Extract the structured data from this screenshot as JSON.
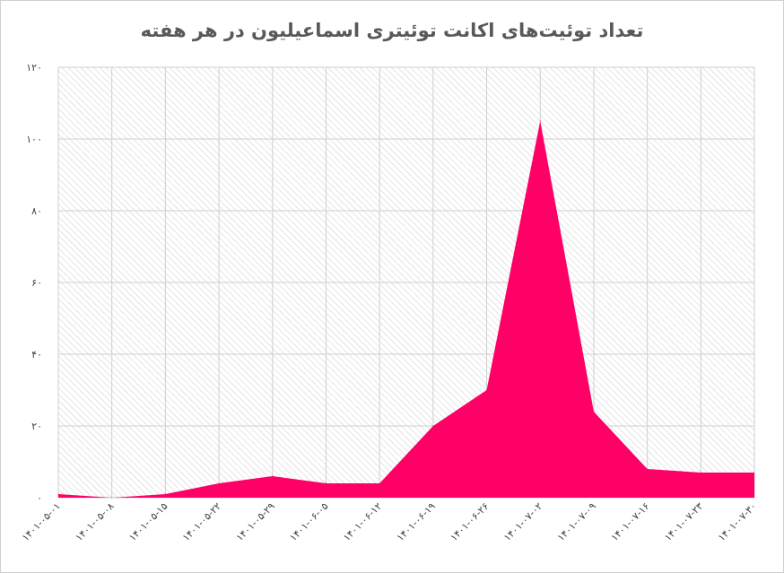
{
  "chart_data": {
    "type": "area",
    "title": "تعداد توئیت‌های اکانت توئیتری اسماعیلیون در هر هفته",
    "xlabel": "",
    "ylabel": "",
    "ylim": [
      0,
      120
    ],
    "y_ticks": [
      "۰",
      "۲۰",
      "۴۰",
      "۶۰",
      "۸۰",
      "۱۰۰",
      "۱۲۰"
    ],
    "categories": [
      "۱۴۰۱-۰۵-۰۱",
      "۱۴۰۱-۰۵-۰۸",
      "۱۴۰۱-۰۵-۱۵",
      "۱۴۰۱-۰۵-۲۲",
      "۱۴۰۱-۰۵-۲۹",
      "۱۴۰۱-۰۶-۰۵",
      "۱۴۰۱-۰۶-۱۲",
      "۱۴۰۱-۰۶-۱۹",
      "۱۴۰۱-۰۶-۲۶",
      "۱۴۰۱-۰۷-۰۲",
      "۱۴۰۱-۰۷-۰۹",
      "۱۴۰۱-۰۷-۱۶",
      "۱۴۰۱-۰۷-۲۳",
      "۱۴۰۱-۰۷-۳۰"
    ],
    "values": [
      1,
      0,
      1,
      4,
      6,
      4,
      4,
      20,
      30,
      105,
      24,
      8,
      7,
      7
    ],
    "grid": true,
    "legend": "none",
    "fill_color": "#ff0066",
    "plot_background": "hatched-light-gray"
  }
}
